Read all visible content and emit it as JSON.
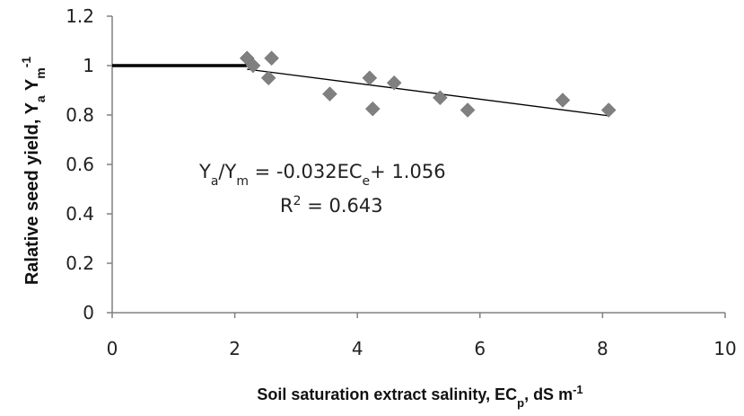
{
  "chart_data": {
    "type": "scatter",
    "xlabel": "Soil saturation extract salinity, EC",
    "xlabel_sub": "p",
    "xlabel_tail": ", dS m",
    "xlabel_sup": "-1",
    "ylabel": "Ralative seed yield, Y",
    "ylabel_sub1": "a",
    "ylabel_mid": " Y",
    "ylabel_sub2": "m",
    "ylabel_sup": "-1",
    "xlim": [
      0,
      10
    ],
    "ylim": [
      0,
      1.2
    ],
    "x_ticks": [
      "0",
      "2",
      "4",
      "6",
      "8",
      "10"
    ],
    "y_ticks": [
      "0",
      "0.2",
      "0.4",
      "0.6",
      "0.8",
      "1",
      "1.2"
    ],
    "grid": false,
    "series": [
      {
        "marker": "diamond",
        "color": "#808080",
        "points": [
          {
            "x": 2.2,
            "y": 1.03
          },
          {
            "x": 2.3,
            "y": 1.0
          },
          {
            "x": 2.55,
            "y": 0.95
          },
          {
            "x": 2.6,
            "y": 1.03
          },
          {
            "x": 3.55,
            "y": 0.885
          },
          {
            "x": 4.2,
            "y": 0.95
          },
          {
            "x": 4.25,
            "y": 0.825
          },
          {
            "x": 4.6,
            "y": 0.93
          },
          {
            "x": 5.35,
            "y": 0.87
          },
          {
            "x": 5.8,
            "y": 0.82
          },
          {
            "x": 7.35,
            "y": 0.86
          },
          {
            "x": 8.1,
            "y": 0.82
          }
        ]
      }
    ],
    "threshold_line": {
      "x": [
        0,
        2.2
      ],
      "y": 1.0,
      "color": "#000000"
    },
    "fit_line": {
      "x": [
        2.2,
        8.1
      ],
      "slope": -0.032,
      "intercept": 1.056,
      "color": "#000000"
    },
    "equation": {
      "lhs1": "Y",
      "lhs1_sub": "a",
      "slash": "/",
      "lhs2": "Y",
      "lhs2_sub": "m",
      "rhs": " = -0.032EC",
      "rhs_sub": "e",
      "rhs_tail": "+ 1.056",
      "r2_label": "R",
      "r2_sup": "2",
      "r2_value": " = 0.643"
    }
  }
}
